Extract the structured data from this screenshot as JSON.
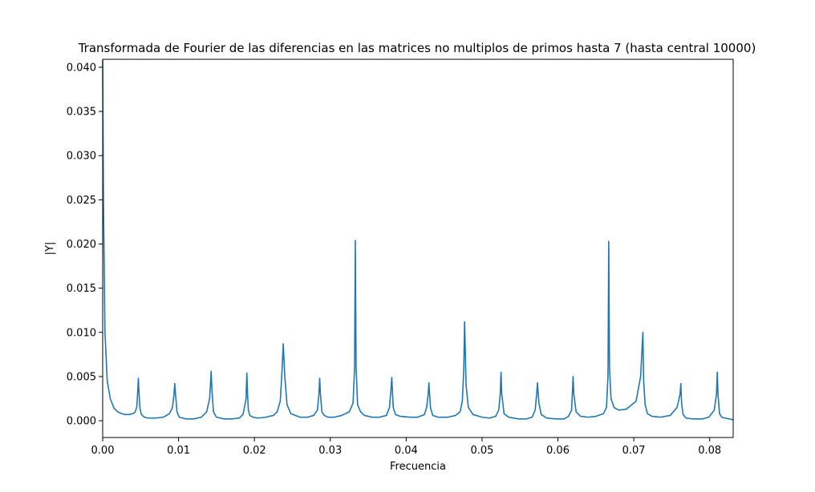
{
  "chart_data": {
    "type": "line",
    "title": "Transformada de Fourier de las diferencias en las matrices no multiplos de primos hasta 7 (hasta central 10000)",
    "xlabel": "Frecuencia",
    "ylabel": "|Y|",
    "xlim": [
      0,
      0.0831
    ],
    "ylim": [
      -0.0019,
      0.0409
    ],
    "xticks": [
      {
        "value": 0.0,
        "label": "0.00"
      },
      {
        "value": 0.01,
        "label": "0.01"
      },
      {
        "value": 0.02,
        "label": "0.02"
      },
      {
        "value": 0.03,
        "label": "0.03"
      },
      {
        "value": 0.04,
        "label": "0.04"
      },
      {
        "value": 0.05,
        "label": "0.05"
      },
      {
        "value": 0.06,
        "label": "0.06"
      },
      {
        "value": 0.07,
        "label": "0.07"
      },
      {
        "value": 0.08,
        "label": "0.08"
      }
    ],
    "yticks": [
      {
        "value": 0.0,
        "label": "0.000"
      },
      {
        "value": 0.005,
        "label": "0.005"
      },
      {
        "value": 0.01,
        "label": "0.010"
      },
      {
        "value": 0.015,
        "label": "0.015"
      },
      {
        "value": 0.02,
        "label": "0.020"
      },
      {
        "value": 0.025,
        "label": "0.025"
      },
      {
        "value": 0.03,
        "label": "0.030"
      },
      {
        "value": 0.035,
        "label": "0.035"
      },
      {
        "value": 0.04,
        "label": "0.040"
      }
    ],
    "grid": false,
    "line_color": "#1f77b4",
    "series": [
      {
        "x": [
          0.0,
          0.0001,
          0.0003,
          0.0006,
          0.001,
          0.0015,
          0.002,
          0.0025,
          0.003,
          0.0035,
          0.004,
          0.0043,
          0.0045,
          0.0046,
          0.0047,
          0.0048,
          0.0049,
          0.0051,
          0.0055,
          0.006,
          0.007,
          0.008,
          0.0088,
          0.0092,
          0.0094,
          0.0095,
          0.0096,
          0.0098,
          0.0101,
          0.011,
          0.012,
          0.013,
          0.0137,
          0.0141,
          0.0142,
          0.0143,
          0.0144,
          0.0146,
          0.015,
          0.016,
          0.017,
          0.018,
          0.0185,
          0.0189,
          0.019,
          0.0191,
          0.0192,
          0.0194,
          0.0198,
          0.0205,
          0.0215,
          0.0225,
          0.023,
          0.0234,
          0.0236,
          0.0238,
          0.024,
          0.0243,
          0.0248,
          0.026,
          0.027,
          0.0278,
          0.0283,
          0.0285,
          0.0286,
          0.0287,
          0.0289,
          0.0292,
          0.0297,
          0.0305,
          0.0315,
          0.0325,
          0.033,
          0.0332,
          0.0333,
          0.0334,
          0.0336,
          0.034,
          0.0345,
          0.0355,
          0.0365,
          0.0374,
          0.0378,
          0.038,
          0.0381,
          0.0383,
          0.0386,
          0.0392,
          0.0405,
          0.0415,
          0.0424,
          0.0427,
          0.0429,
          0.043,
          0.0432,
          0.0435,
          0.0442,
          0.0455,
          0.0465,
          0.0471,
          0.0474,
          0.0476,
          0.0477,
          0.0479,
          0.0482,
          0.0488,
          0.05,
          0.051,
          0.0518,
          0.0522,
          0.0524,
          0.0525,
          0.0526,
          0.0529,
          0.0535,
          0.0548,
          0.0558,
          0.0566,
          0.057,
          0.0572,
          0.0573,
          0.0575,
          0.0578,
          0.0585,
          0.0598,
          0.0608,
          0.0614,
          0.0618,
          0.0619,
          0.062,
          0.0621,
          0.0624,
          0.063,
          0.064,
          0.065,
          0.066,
          0.0664,
          0.0666,
          0.0667,
          0.0668,
          0.067,
          0.0674,
          0.068,
          0.069,
          0.0703,
          0.0709,
          0.0712,
          0.0713,
          0.0715,
          0.0718,
          0.0724,
          0.0735,
          0.0748,
          0.0757,
          0.0761,
          0.0762,
          0.0763,
          0.0765,
          0.0769,
          0.0778,
          0.079,
          0.0799,
          0.0806,
          0.0809,
          0.081,
          0.0811,
          0.0813,
          0.0816,
          0.082,
          0.0826,
          0.0831
        ],
        "y": [
          0.0408,
          0.025,
          0.01,
          0.0045,
          0.0025,
          0.0014,
          0.001,
          0.0008,
          0.0007,
          0.0007,
          0.0008,
          0.001,
          0.0016,
          0.003,
          0.0048,
          0.003,
          0.0015,
          0.0007,
          0.0004,
          0.0003,
          0.0003,
          0.0004,
          0.0008,
          0.0015,
          0.003,
          0.0042,
          0.003,
          0.001,
          0.0004,
          0.0002,
          0.0002,
          0.0004,
          0.001,
          0.0025,
          0.004,
          0.0056,
          0.0035,
          0.001,
          0.0004,
          0.0002,
          0.0002,
          0.0003,
          0.0007,
          0.0025,
          0.0054,
          0.003,
          0.0012,
          0.0006,
          0.0004,
          0.0003,
          0.0004,
          0.0006,
          0.001,
          0.0022,
          0.005,
          0.0087,
          0.005,
          0.0018,
          0.0008,
          0.0004,
          0.0004,
          0.0006,
          0.0012,
          0.003,
          0.0048,
          0.003,
          0.001,
          0.0006,
          0.0004,
          0.0004,
          0.0006,
          0.001,
          0.002,
          0.006,
          0.0204,
          0.006,
          0.0018,
          0.001,
          0.0006,
          0.0004,
          0.0004,
          0.0006,
          0.0015,
          0.0035,
          0.0049,
          0.0015,
          0.0007,
          0.0005,
          0.0004,
          0.0004,
          0.0007,
          0.0015,
          0.003,
          0.0043,
          0.0015,
          0.0006,
          0.0004,
          0.0004,
          0.0006,
          0.001,
          0.0022,
          0.006,
          0.0112,
          0.004,
          0.0015,
          0.0007,
          0.0004,
          0.0003,
          0.0005,
          0.0012,
          0.003,
          0.0055,
          0.003,
          0.0008,
          0.0004,
          0.0002,
          0.0002,
          0.0004,
          0.0012,
          0.003,
          0.0043,
          0.002,
          0.0007,
          0.0003,
          0.0002,
          0.0002,
          0.0005,
          0.0012,
          0.003,
          0.005,
          0.003,
          0.001,
          0.0005,
          0.0004,
          0.0005,
          0.0008,
          0.0015,
          0.005,
          0.0203,
          0.006,
          0.0025,
          0.0015,
          0.0012,
          0.0013,
          0.0022,
          0.005,
          0.01,
          0.0045,
          0.0018,
          0.0008,
          0.0005,
          0.0004,
          0.0006,
          0.0015,
          0.003,
          0.0042,
          0.002,
          0.0007,
          0.0003,
          0.0002,
          0.0002,
          0.0004,
          0.0012,
          0.003,
          0.0055,
          0.003,
          0.0008,
          0.0004,
          0.0003,
          0.0002,
          0.0001
        ]
      }
    ]
  }
}
